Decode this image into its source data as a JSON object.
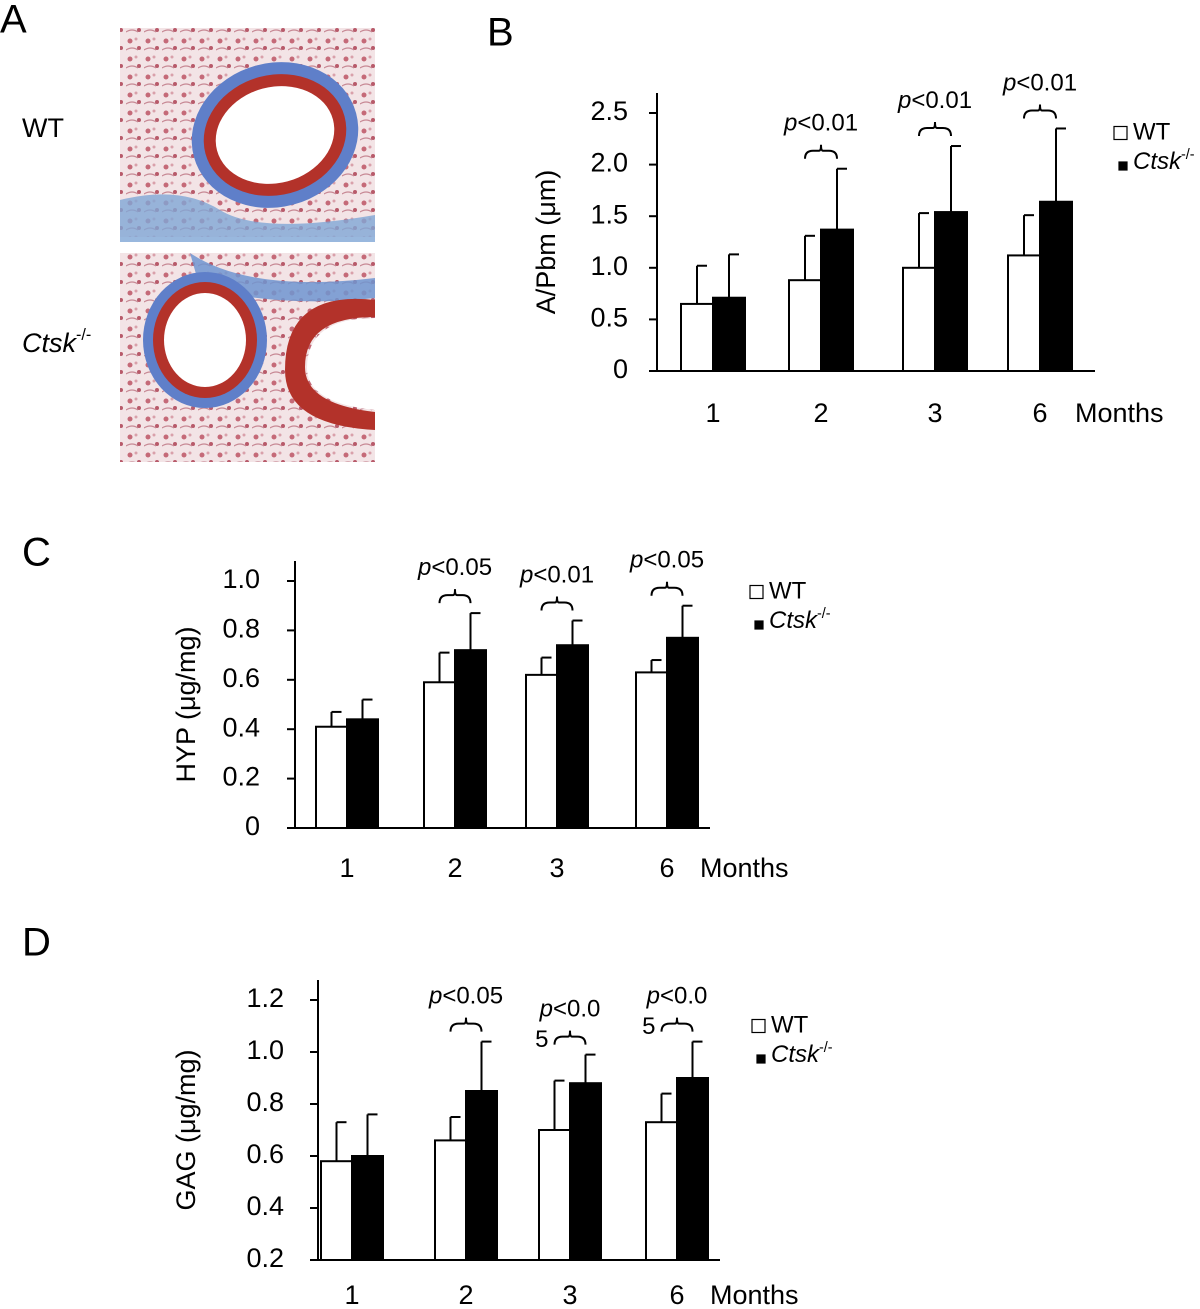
{
  "panel_a": {
    "label": "A",
    "rows": [
      "WT",
      "Ctsk-/-"
    ]
  },
  "chart_data": [
    {
      "type": "bar",
      "label": "B",
      "y_label": "A/Pbm (μm)",
      "x_label": "Months",
      "categories": [
        "1",
        "2",
        "3",
        "6"
      ],
      "series": [
        {
          "name": "WT",
          "color": "#ffffff",
          "values": [
            0.65,
            0.88,
            1.0,
            1.12
          ],
          "errors": [
            0.37,
            0.43,
            0.53,
            0.39
          ]
        },
        {
          "name": "Ctsk-/-",
          "color": "#000000",
          "values": [
            0.71,
            1.37,
            1.54,
            1.64
          ],
          "errors": [
            0.42,
            0.59,
            0.64,
            0.71
          ]
        }
      ],
      "ylim": [
        0,
        2.5
      ],
      "yticks": [
        0,
        0.5,
        {
          "value": 1,
          "label": "1.0"
        },
        1.5,
        {
          "value": 2,
          "label": "2.0"
        },
        2.5
      ],
      "annotations": [
        {
          "category": "2",
          "text": [
            "p<0.01"
          ]
        },
        {
          "category": "3",
          "text": [
            "p<0.01"
          ]
        },
        {
          "category": "6",
          "text": [
            "p<0.01"
          ]
        }
      ]
    },
    {
      "type": "bar",
      "label": "C",
      "y_label": "HYP (μg/mg)",
      "x_label": "Months",
      "categories": [
        "1",
        "2",
        "3",
        "6"
      ],
      "series": [
        {
          "name": "WT",
          "color": "#ffffff",
          "values": [
            0.41,
            0.59,
            0.62,
            0.63
          ],
          "errors": [
            0.06,
            0.12,
            0.07,
            0.05
          ]
        },
        {
          "name": "Ctsk-/-",
          "color": "#000000",
          "values": [
            0.44,
            0.72,
            0.74,
            0.77
          ],
          "errors": [
            0.08,
            0.15,
            0.1,
            0.13
          ]
        }
      ],
      "ylim": [
        0,
        1
      ],
      "yticks": [
        0,
        0.2,
        0.4,
        0.6,
        0.8,
        {
          "value": 1,
          "label": "1.0"
        }
      ],
      "annotations": [
        {
          "category": "2",
          "text": [
            "p<0.05"
          ]
        },
        {
          "category": "3",
          "text": [
            "p<0.01"
          ]
        },
        {
          "category": "6",
          "text": [
            "p<0.05"
          ]
        }
      ]
    },
    {
      "type": "bar",
      "label": "D",
      "y_label": "GAG (μg/mg)",
      "x_label": "Months",
      "categories": [
        "1",
        "2",
        "3",
        "6"
      ],
      "series": [
        {
          "name": "WT",
          "color": "#ffffff",
          "values": [
            0.58,
            0.66,
            0.7,
            0.73
          ],
          "errors": [
            0.15,
            0.09,
            0.19,
            0.11
          ]
        },
        {
          "name": "Ctsk-/-",
          "color": "#000000",
          "values": [
            0.6,
            0.85,
            0.88,
            0.9
          ],
          "errors": [
            0.16,
            0.19,
            0.11,
            0.14
          ]
        }
      ],
      "ylim": [
        0.2,
        1.2
      ],
      "yticks": [
        0.2,
        0.4,
        0.6,
        0.8,
        {
          "value": 1,
          "label": "1.0"
        },
        1.2
      ],
      "annotations": [
        {
          "category": "2",
          "text": [
            "p<0.05"
          ]
        },
        {
          "category": "3",
          "text": [
            "p<0.0",
            "5"
          ]
        },
        {
          "category": "6",
          "text": [
            "p<0.0",
            "5"
          ]
        }
      ]
    }
  ]
}
